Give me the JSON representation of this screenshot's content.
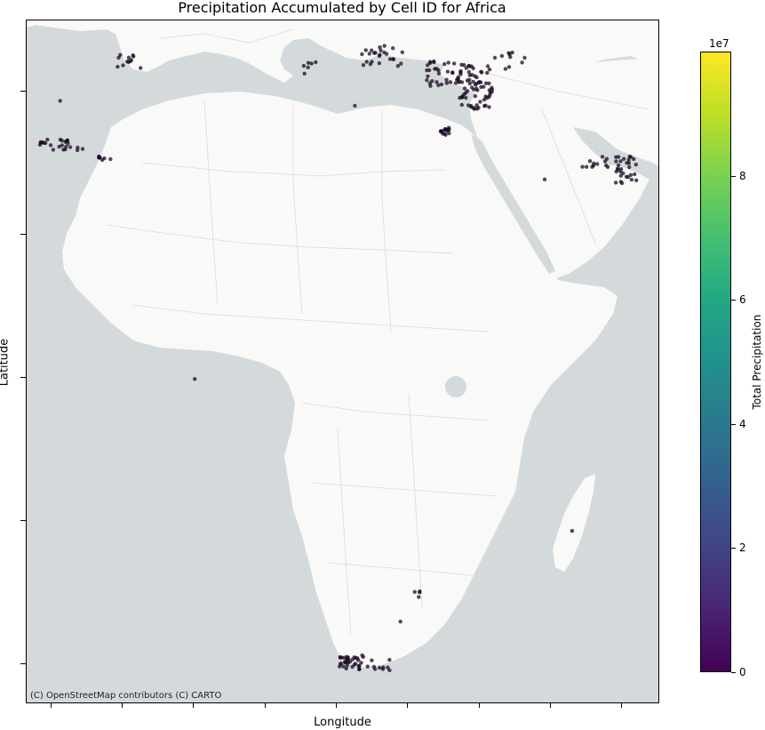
{
  "map": {
    "title": "Precipitation Accumulated by Cell ID for Africa",
    "xlabel": "Longitude",
    "ylabel": "Latitude",
    "attribution": "(C) OpenStreetMap contributors (C) CARTO",
    "land_color": "#f9f9f8",
    "water_color": "#d4dadc",
    "border_color": "#e8d3d6",
    "point_color": "#1b0a24"
  },
  "colorbar": {
    "label": "Total Precipitation",
    "exponent": "1e7",
    "ticks": [
      "0",
      "2",
      "4",
      "6",
      "8"
    ],
    "colormap": "viridis",
    "range": [
      0,
      10
    ]
  }
}
